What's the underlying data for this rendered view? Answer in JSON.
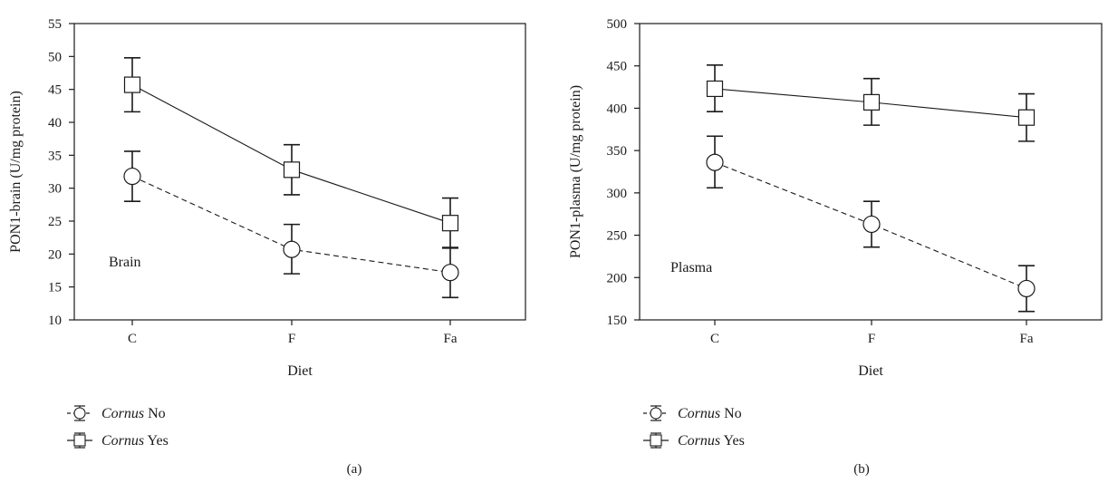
{
  "chart_data": [
    {
      "type": "line",
      "panel_label": "(a)",
      "annotation": "Brain",
      "xlabel": "Diet",
      "ylabel": "PON1-brain (U/mg protein)",
      "categories": [
        "C",
        "F",
        "Fa"
      ],
      "ylim": [
        10,
        55
      ],
      "yticks": [
        10,
        15,
        20,
        25,
        30,
        35,
        40,
        45,
        50,
        55
      ],
      "grid": false,
      "legend_position": "bottom-left",
      "series": [
        {
          "legend_italic": "Cornus",
          "legend_suffix": " No",
          "line_style": "dashed",
          "marker": "circle",
          "values": [
            31.8,
            20.7,
            17.2
          ],
          "err_low": [
            28.0,
            17.0,
            13.4
          ],
          "err_high": [
            35.6,
            24.5,
            21.0
          ]
        },
        {
          "legend_italic": "Cornus",
          "legend_suffix": " Yes",
          "line_style": "solid",
          "marker": "square",
          "values": [
            45.7,
            32.8,
            24.7
          ],
          "err_low": [
            41.6,
            29.0,
            20.9
          ],
          "err_high": [
            49.8,
            36.6,
            28.5
          ]
        }
      ]
    },
    {
      "type": "line",
      "panel_label": "(b)",
      "annotation": "Plasma",
      "xlabel": "Diet",
      "ylabel": "PON1-plasma (U/mg protein)",
      "categories": [
        "C",
        "F",
        "Fa"
      ],
      "ylim": [
        150,
        500
      ],
      "yticks": [
        150,
        200,
        250,
        300,
        350,
        400,
        450,
        500
      ],
      "grid": false,
      "legend_position": "bottom-left",
      "series": [
        {
          "legend_italic": "Cornus",
          "legend_suffix": " No",
          "line_style": "dashed",
          "marker": "circle",
          "values": [
            336,
            263,
            187
          ],
          "err_low": [
            306,
            236,
            160
          ],
          "err_high": [
            367,
            290,
            214
          ]
        },
        {
          "legend_italic": "Cornus",
          "legend_suffix": " Yes",
          "line_style": "solid",
          "marker": "square",
          "values": [
            423,
            407,
            389
          ],
          "err_low": [
            396,
            380,
            361
          ],
          "err_high": [
            451,
            435,
            417
          ]
        }
      ]
    }
  ]
}
